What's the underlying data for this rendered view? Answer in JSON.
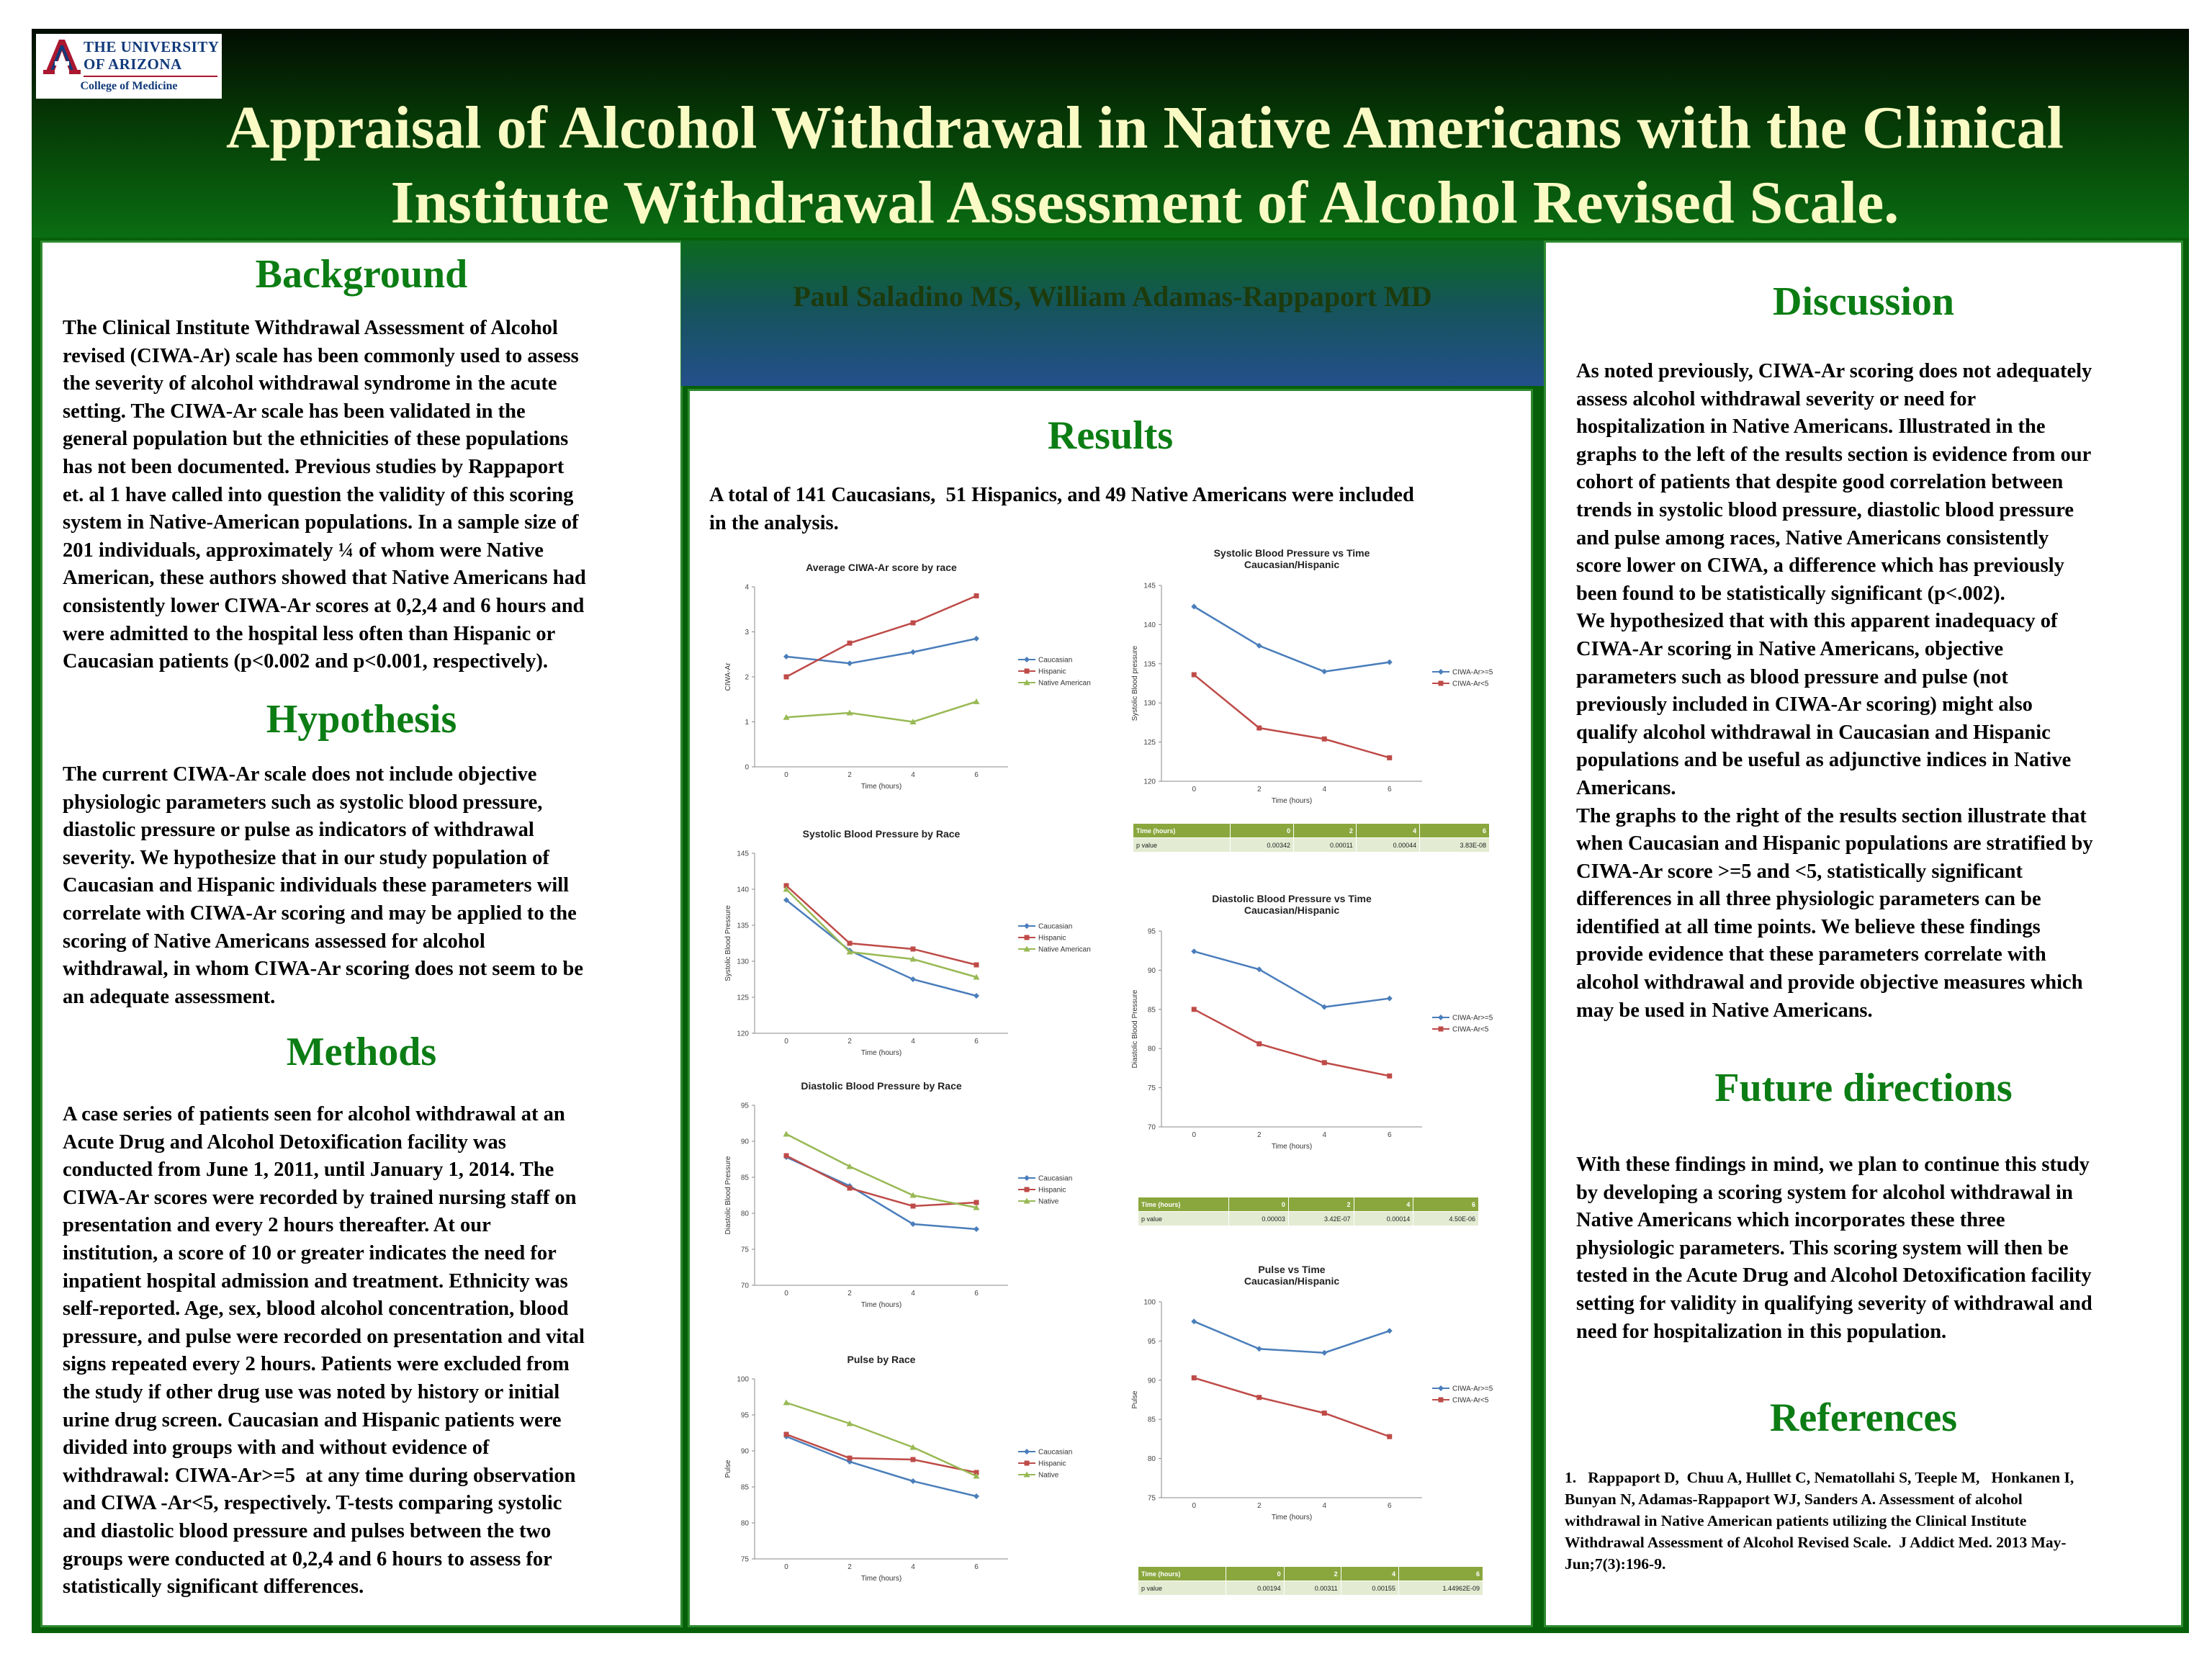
{
  "header": {
    "logo": {
      "line1": "THE UNIVERSITY",
      "line2": "OF ARIZONA",
      "college": "College of Medicine"
    },
    "title_line1": "Appraisal of Alcohol Withdrawal in Native Americans with the Clinical",
    "title_line2": "Institute Withdrawal Assessment of Alcohol Revised Scale.",
    "authors": "Paul Saladino MS, William Adamas-Rappaport MD"
  },
  "left": {
    "background_heading": "Background",
    "background_lines": [
      "The Clinical Institute Withdrawal Assessment of Alcohol",
      "revised (CIWA-Ar) scale has been commonly used to assess",
      "the severity of alcohol withdrawal syndrome in the acute",
      "setting. The CIWA-Ar scale has been validated in the",
      "general population but the ethnicities of these populations",
      "has not been documented. Previous studies by Rappaport",
      "et. al 1 have called into question the validity of this scoring",
      "system in Native-American populations. In a sample size of",
      "201 individuals, approximately ¼ of whom were Native",
      "American, these authors showed that Native Americans had",
      "consistently lower CIWA-Ar scores at 0,2,4 and 6 hours and",
      "were admitted to the hospital less often than Hispanic or",
      "Caucasian patients (p<0.002 and p<0.001, respectively)."
    ],
    "hypothesis_heading": "Hypothesis",
    "hypothesis_lines": [
      "The current CIWA-Ar scale does not include objective",
      "physiologic parameters such as systolic blood pressure,",
      "diastolic pressure or pulse as indicators of withdrawal",
      "severity. We hypothesize that in our study population of",
      "Caucasian and Hispanic individuals these parameters will",
      "correlate with CIWA-Ar scoring and may be applied to the",
      "scoring of Native Americans assessed for alcohol",
      "withdrawal, in whom CIWA-Ar scoring does not seem to be",
      "an adequate assessment."
    ],
    "methods_heading": "Methods",
    "methods_lines": [
      "A case series of patients seen for alcohol withdrawal at an",
      "Acute Drug and Alcohol Detoxification facility was",
      "conducted from June 1, 2011, until January 1, 2014. The",
      "CIWA-Ar scores were recorded by trained nursing staff on",
      "presentation and every 2 hours thereafter. At our",
      "institution, a score of 10 or greater indicates the need for",
      "inpatient hospital admission and treatment. Ethnicity was",
      "self-reported. Age, sex, blood alcohol concentration, blood",
      "pressure, and pulse were recorded on presentation and vital",
      "signs repeated every 2 hours. Patients were excluded from",
      "the study if other drug use was noted by history or initial",
      "urine drug screen. Caucasian and Hispanic patients were",
      "divided into groups with and without evidence of",
      "withdrawal: CIWA-Ar>=5  at any time during observation",
      "and CIWA -Ar<5, respectively. T-tests comparing systolic",
      "and diastolic blood pressure and pulses between the two",
      "groups were conducted at 0,2,4 and 6 hours to assess for",
      "statistically significant differences."
    ]
  },
  "middle": {
    "results_heading": "Results",
    "results_lines": [
      "A total of 141 Caucasians,  51 Hispanics, and 49 Native Americans were included",
      "in the analysis."
    ]
  },
  "right": {
    "discussion_heading": "Discussion",
    "discussion_lines": [
      "As noted previously, CIWA-Ar scoring does not adequately",
      "assess alcohol withdrawal severity or need for",
      "hospitalization in Native Americans. Illustrated in the",
      "graphs to the left of the results section is evidence from our",
      "cohort of patients that despite good correlation between",
      "trends in systolic blood pressure, diastolic blood pressure",
      "and pulse among races, Native Americans consistently",
      "score lower on CIWA, a difference which has previously",
      "been found to be statistically significant (p<.002).",
      "We hypothesized that with this apparent inadequacy of",
      "CIWA-Ar scoring in Native Americans, objective",
      "parameters such as blood pressure and pulse (not",
      "previously included in CIWA-Ar scoring) might also",
      "qualify alcohol withdrawal in Caucasian and Hispanic",
      "populations and be useful as adjunctive indices in Native",
      "Americans.",
      "The graphs to the right of the results section illustrate that",
      "when Caucasian and Hispanic populations are stratified by",
      "CIWA-Ar score >=5 and <5, statistically significant",
      "differences in all three physiologic parameters can be",
      "identified at all time points. We believe these findings",
      "provide evidence that these parameters correlate with",
      "alcohol withdrawal and provide objective measures which",
      "may be used in Native Americans."
    ],
    "future_heading": "Future directions",
    "future_lines": [
      "With these findings in mind, we plan to continue this study",
      "by developing a scoring system for alcohol withdrawal in",
      "Native Americans which incorporates these three",
      "physiologic parameters. This scoring system will then be",
      "tested in the Acute Drug and Alcohol Detoxification facility",
      "setting for validity in qualifying severity of withdrawal and",
      "need for hospitalization in this population."
    ],
    "references_heading": "References",
    "reference_lines": [
      "1.   Rappaport D,  Chuu A, Hulllet C, Nematollahi S, Teeple M,   Honkanen I,",
      "Bunyan N, Adamas-Rappaport WJ, Sanders A. Assessment of alcohol",
      "withdrawal in Native American patients utilizing the Clinical Institute",
      "Withdrawal Assessment of Alcohol Revised Scale.  J Addict Med. 2013 May-",
      "Jun;7(3):196-9."
    ]
  },
  "chart_data": [
    {
      "type": "line",
      "title": "Average CIWA-Ar score by race",
      "xlabel": "Time (hours)",
      "ylabel": "CIWA-Ar",
      "x": [
        0,
        2,
        4,
        6
      ],
      "ylim": [
        0,
        4
      ],
      "yticks": [
        0,
        1,
        2,
        3,
        4
      ],
      "series": [
        {
          "name": "Caucasian",
          "values": [
            2.45,
            2.3,
            2.55,
            2.85
          ],
          "color": "#4a7ebb",
          "marker": "diamond"
        },
        {
          "name": "Hispanic",
          "values": [
            2.0,
            2.75,
            3.2,
            3.8
          ],
          "color": "#be4b48",
          "marker": "square"
        },
        {
          "name": "Native American",
          "values": [
            1.1,
            1.2,
            1.0,
            1.45
          ],
          "color": "#98b954",
          "marker": "triangle"
        }
      ],
      "legend": "right",
      "grid": false
    },
    {
      "type": "line",
      "title": "Systolic Blood Pressure by Race",
      "xlabel": "Time (hours)",
      "ylabel": "Systolic Blood Pressure",
      "x": [
        0,
        2,
        4,
        6
      ],
      "ylim": [
        120,
        145
      ],
      "yticks": [
        120,
        125,
        130,
        135,
        140,
        145
      ],
      "series": [
        {
          "name": "Caucasian",
          "values": [
            138.5,
            131.5,
            127.5,
            125.2
          ],
          "color": "#4a7ebb",
          "marker": "diamond"
        },
        {
          "name": "Hispanic",
          "values": [
            140.5,
            132.5,
            131.7,
            129.5
          ],
          "color": "#be4b48",
          "marker": "square"
        },
        {
          "name": "Native American",
          "values": [
            140.0,
            131.3,
            130.3,
            127.8
          ],
          "color": "#98b954",
          "marker": "triangle"
        }
      ],
      "legend": "right",
      "grid": false
    },
    {
      "type": "line",
      "title": "Diastolic Blood Pressure by Race",
      "xlabel": "Time (hours)",
      "ylabel": "Diastolic Blood Pressure",
      "x": [
        0,
        2,
        4,
        6
      ],
      "ylim": [
        70,
        95
      ],
      "yticks": [
        70,
        75,
        80,
        85,
        90,
        95
      ],
      "series": [
        {
          "name": "Caucasian",
          "values": [
            87.8,
            83.8,
            78.5,
            77.8
          ],
          "color": "#4a7ebb",
          "marker": "diamond"
        },
        {
          "name": "Hispanic",
          "values": [
            88.0,
            83.5,
            81.0,
            81.5
          ],
          "color": "#be4b48",
          "marker": "square"
        },
        {
          "name": "Native",
          "values": [
            91.0,
            86.5,
            82.5,
            80.8
          ],
          "color": "#98b954",
          "marker": "triangle"
        }
      ],
      "legend": "right",
      "grid": false
    },
    {
      "type": "line",
      "title": "Pulse by Race",
      "xlabel": "Time (hours)",
      "ylabel": "Pulse",
      "x": [
        0,
        2,
        4,
        6
      ],
      "ylim": [
        75,
        100
      ],
      "yticks": [
        75,
        80,
        85,
        90,
        95,
        100
      ],
      "series": [
        {
          "name": "Caucasian",
          "values": [
            92.0,
            88.5,
            85.8,
            83.7
          ],
          "color": "#4a7ebb",
          "marker": "diamond"
        },
        {
          "name": "Hispanic",
          "values": [
            92.3,
            89.0,
            88.8,
            87.0
          ],
          "color": "#be4b48",
          "marker": "square"
        },
        {
          "name": "Native",
          "values": [
            96.7,
            93.8,
            90.5,
            86.5
          ],
          "color": "#98b954",
          "marker": "triangle"
        }
      ],
      "legend": "right",
      "grid": false
    },
    {
      "type": "line",
      "title": "Systolic Blood Pressure vs Time Caucasian/Hispanic",
      "xlabel": "Time (hours)",
      "ylabel": "Systolic Blood pressure",
      "x": [
        0,
        2,
        4,
        6
      ],
      "ylim": [
        120,
        145
      ],
      "yticks": [
        120,
        125,
        130,
        135,
        140,
        145
      ],
      "series": [
        {
          "name": "CIWA-Ar>=5",
          "values": [
            142.3,
            137.3,
            134.0,
            135.2
          ],
          "color": "#4a7ebb",
          "marker": "diamond"
        },
        {
          "name": "CIWA-Ar<5",
          "values": [
            133.6,
            126.8,
            125.4,
            123.0
          ],
          "color": "#be4b48",
          "marker": "square"
        }
      ],
      "legend": "right",
      "grid": false,
      "table": {
        "header": [
          "Time (hours)",
          "0",
          "2",
          "4",
          "6"
        ],
        "row": [
          "p value",
          "0.00342",
          "0.00011",
          "0.00044",
          "3.83E-08"
        ]
      }
    },
    {
      "type": "line",
      "title": "Diastolic Blood Pressure vs Time Caucasian/Hispanic",
      "xlabel": "Time (hours)",
      "ylabel": "Diastolic Blood Pressure",
      "x": [
        0,
        2,
        4,
        6
      ],
      "ylim": [
        70,
        95
      ],
      "yticks": [
        70,
        75,
        80,
        85,
        90,
        95
      ],
      "series": [
        {
          "name": "CIWA-Ar>=5",
          "values": [
            92.4,
            90.1,
            85.3,
            86.4
          ],
          "color": "#4a7ebb",
          "marker": "diamond"
        },
        {
          "name": "CIWA-Ar<5",
          "values": [
            85.0,
            80.6,
            78.2,
            76.5
          ],
          "color": "#be4b48",
          "marker": "square"
        }
      ],
      "legend": "right",
      "grid": false,
      "table": {
        "header": [
          "Time (hours)",
          "0",
          "2",
          "4",
          "6"
        ],
        "row": [
          "p value",
          "0.00003",
          "3.42E-07",
          "0.00014",
          "4.50E-06"
        ]
      }
    },
    {
      "type": "line",
      "title": "Pulse vs Time Caucasian/Hispanic",
      "xlabel": "Time (hours)",
      "ylabel": "Pulse",
      "x": [
        0,
        2,
        4,
        6
      ],
      "ylim": [
        75,
        100
      ],
      "yticks": [
        75,
        80,
        85,
        90,
        95,
        100
      ],
      "series": [
        {
          "name": "CIWA-Ar>=5",
          "values": [
            97.5,
            94.0,
            93.5,
            96.3
          ],
          "color": "#4a7ebb",
          "marker": "diamond"
        },
        {
          "name": "CIWA-Ar<5",
          "values": [
            90.3,
            87.8,
            85.8,
            82.8
          ],
          "color": "#be4b48",
          "marker": "square"
        }
      ],
      "legend": "right",
      "grid": false,
      "table": {
        "header": [
          "Time (hours)",
          "0",
          "2",
          "4",
          "6"
        ],
        "row": [
          "p value",
          "0.00194",
          "0.00311",
          "0.00155",
          "1.44962E-09"
        ]
      }
    }
  ]
}
